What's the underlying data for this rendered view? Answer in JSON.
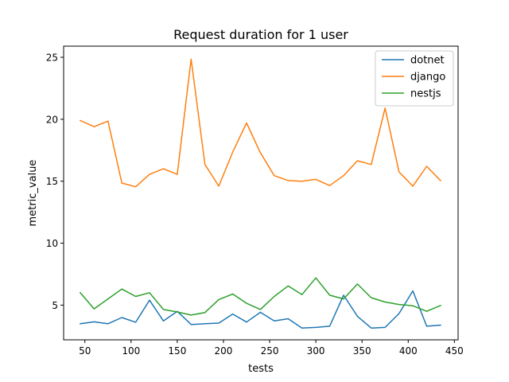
{
  "chart_data": {
    "type": "line",
    "title": "Request duration for 1 user",
    "xlabel": "tests",
    "ylabel": "metric_value",
    "xlim": [
      27,
      454
    ],
    "ylim": [
      2.2,
      25.9
    ],
    "xticks": [
      50,
      100,
      150,
      200,
      250,
      300,
      350,
      400,
      450
    ],
    "yticks": [
      5,
      10,
      15,
      20,
      25
    ],
    "x": [
      45,
      60,
      75,
      90,
      105,
      120,
      135,
      150,
      165,
      180,
      195,
      210,
      225,
      240,
      255,
      270,
      285,
      300,
      315,
      330,
      345,
      360,
      375,
      390,
      405,
      420,
      435
    ],
    "grid": false,
    "legend_position": "top-right",
    "series": [
      {
        "name": "dotnet",
        "color": "#1f77b4",
        "values": [
          3.5,
          3.65,
          3.5,
          4.0,
          3.62,
          5.4,
          3.72,
          4.5,
          3.44,
          3.5,
          3.55,
          4.28,
          3.63,
          4.42,
          3.73,
          3.9,
          3.15,
          3.2,
          3.3,
          5.8,
          4.1,
          3.15,
          3.2,
          4.32,
          6.15,
          3.3,
          3.38
        ]
      },
      {
        "name": "django",
        "color": "#ff7f0e",
        "values": [
          19.9,
          19.4,
          19.85,
          14.85,
          14.55,
          15.55,
          16.0,
          15.55,
          24.85,
          16.35,
          14.6,
          17.35,
          19.7,
          17.3,
          15.45,
          15.05,
          15.0,
          15.15,
          14.65,
          15.45,
          16.65,
          16.35,
          20.9,
          15.75,
          14.6,
          16.2,
          15.05
        ]
      },
      {
        "name": "nestjs",
        "color": "#2ca02c",
        "values": [
          6.0,
          4.7,
          5.5,
          6.3,
          5.7,
          6.0,
          4.65,
          4.45,
          4.2,
          4.4,
          5.45,
          5.9,
          5.15,
          4.65,
          5.7,
          6.55,
          5.85,
          7.2,
          5.8,
          5.5,
          6.7,
          5.6,
          5.25,
          5.05,
          4.95,
          4.5,
          4.97
        ]
      }
    ]
  }
}
